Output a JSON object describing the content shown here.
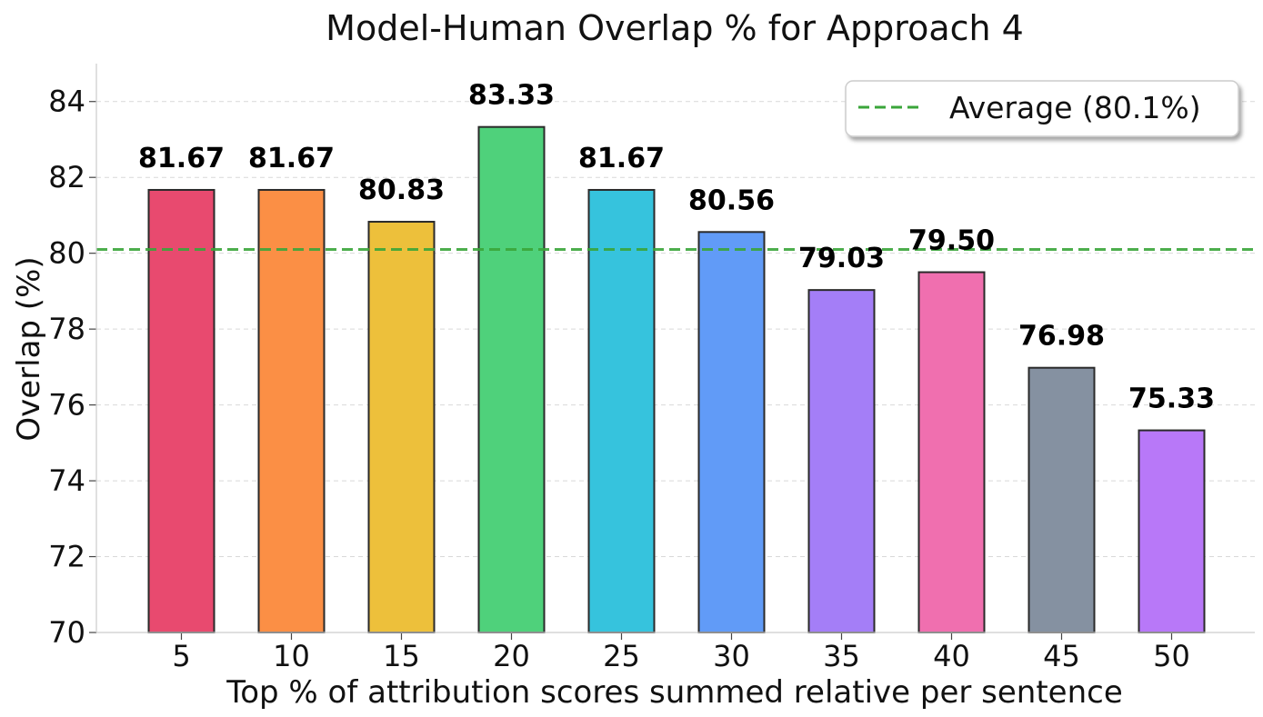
{
  "chart_data": {
    "type": "bar",
    "title": "Model-Human Overlap % for Approach 4",
    "xlabel": "Top % of attribution scores summed relative per sentence",
    "ylabel": "Overlap (%)",
    "categories": [
      "5",
      "10",
      "15",
      "20",
      "25",
      "30",
      "35",
      "40",
      "45",
      "50"
    ],
    "values": [
      81.67,
      81.67,
      80.83,
      83.33,
      81.67,
      80.56,
      79.03,
      79.5,
      76.98,
      75.33
    ],
    "value_labels": [
      "81.67",
      "81.67",
      "80.83",
      "83.33",
      "81.67",
      "80.56",
      "79.03",
      "79.50",
      "76.98",
      "75.33"
    ],
    "colors": [
      "#e84a6f",
      "#fb8f45",
      "#edc03b",
      "#4fd17b",
      "#36c3dd",
      "#619bf7",
      "#a47ef7",
      "#f06faf",
      "#8591a1",
      "#b878f8"
    ],
    "ylim": [
      70,
      85
    ],
    "yticks": [
      70,
      72,
      74,
      76,
      78,
      80,
      82,
      84
    ],
    "grid": "y-dashed",
    "average_line": {
      "value": 80.1,
      "label": "Average (80.1%)",
      "color": "#3aa53a",
      "style": "dashed"
    },
    "legend": {
      "placement": "top-right",
      "entries": [
        "Average (80.1%)"
      ]
    }
  }
}
